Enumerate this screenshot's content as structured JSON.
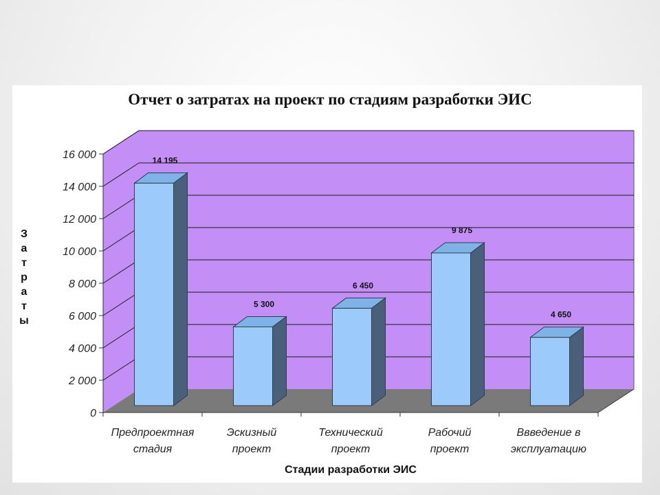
{
  "chart_data": {
    "type": "bar",
    "title": "Отчет о затратах на проект по стадиям разработки ЭИС",
    "xlabel": "Стадии разработки ЭИС",
    "ylabel": "Затраты",
    "categories": [
      [
        "Предпроектная",
        "стадия"
      ],
      [
        "Эскизный",
        "проект"
      ],
      [
        "Технический",
        "проект"
      ],
      [
        "Рабочий",
        "проект"
      ],
      [
        "Ввведение в",
        "эксплуатацию"
      ]
    ],
    "values": [
      14195,
      5300,
      6450,
      9875,
      4650
    ],
    "value_labels": [
      "14 195",
      "5 300",
      "6 450",
      "9 875",
      "4 650"
    ],
    "ylim": [
      0,
      16000
    ],
    "yticks": [
      0,
      2000,
      4000,
      6000,
      8000,
      10000,
      12000,
      14000,
      16000
    ],
    "ytick_labels": [
      "0",
      "2 000",
      "4 000",
      "6 000",
      "8 000",
      "10 000",
      "12 000",
      "14 000",
      "16 000"
    ],
    "grid": true,
    "style": "3d-column",
    "colors": {
      "wall": "#c38ef6",
      "floor": "#7a7a7a",
      "bar_front": "#9ccbfb",
      "bar_top": "#7fb3e8",
      "bar_side": "#4a607a",
      "grid": "#1a1a1a"
    }
  }
}
